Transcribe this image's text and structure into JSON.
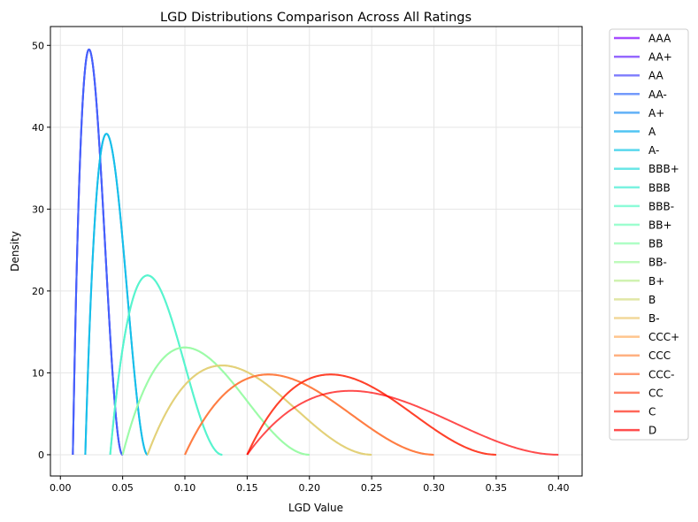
{
  "chart_data": {
    "type": "line",
    "title": "LGD Distributions Comparison Across All Ratings",
    "xlabel": "LGD Value",
    "ylabel": "Density",
    "xlim": [
      -0.008,
      0.419
    ],
    "ylim": [
      -2.6,
      52.3
    ],
    "xticks": [
      "0.00",
      "0.05",
      "0.10",
      "0.15",
      "0.20",
      "0.25",
      "0.30",
      "0.35",
      "0.40"
    ],
    "yticks": [
      "0",
      "10",
      "20",
      "30",
      "40",
      "50"
    ],
    "grid": true,
    "legend_placement": "outside-right",
    "series_opacity": 0.7,
    "series": [
      {
        "name": "AAA",
        "color": "#8000ff",
        "lgd_range": [
          0.01,
          0.05
        ],
        "mode": 0.023,
        "peak_density": 49.5
      },
      {
        "name": "AA+",
        "color": "#6726fe",
        "lgd_range": [
          0.01,
          0.05
        ],
        "mode": 0.023,
        "peak_density": 49.5
      },
      {
        "name": "AA",
        "color": "#4f4bfc",
        "lgd_range": [
          0.01,
          0.05
        ],
        "mode": 0.023,
        "peak_density": 49.5
      },
      {
        "name": "AA-",
        "color": "#376ff9",
        "lgd_range": [
          0.01,
          0.05
        ],
        "mode": 0.023,
        "peak_density": 49.5
      },
      {
        "name": "A+",
        "color": "#1e8ff4",
        "lgd_range": [
          0.02,
          0.07
        ],
        "mode": 0.037,
        "peak_density": 39.2
      },
      {
        "name": "A",
        "color": "#06adee",
        "lgd_range": [
          0.02,
          0.07
        ],
        "mode": 0.037,
        "peak_density": 39.2
      },
      {
        "name": "A-",
        "color": "#12c7e6",
        "lgd_range": [
          0.02,
          0.07
        ],
        "mode": 0.037,
        "peak_density": 39.2
      },
      {
        "name": "BBB+",
        "color": "#2bdddd",
        "lgd_range": [
          0.04,
          0.13
        ],
        "mode": 0.07,
        "peak_density": 21.9
      },
      {
        "name": "BBB",
        "color": "#43edd3",
        "lgd_range": [
          0.04,
          0.13
        ],
        "mode": 0.07,
        "peak_density": 21.9
      },
      {
        "name": "BBB-",
        "color": "#5bf9c7",
        "lgd_range": [
          0.04,
          0.13
        ],
        "mode": 0.07,
        "peak_density": 21.9
      },
      {
        "name": "BB+",
        "color": "#73febb",
        "lgd_range": [
          0.05,
          0.2
        ],
        "mode": 0.1,
        "peak_density": 13.1
      },
      {
        "name": "BB",
        "color": "#8cfead",
        "lgd_range": [
          0.05,
          0.2
        ],
        "mode": 0.1,
        "peak_density": 13.1
      },
      {
        "name": "BB-",
        "color": "#a4f99f",
        "lgd_range": [
          0.05,
          0.2
        ],
        "mode": 0.1,
        "peak_density": 13.1
      },
      {
        "name": "B+",
        "color": "#bced90",
        "lgd_range": [
          0.07,
          0.25
        ],
        "mode": 0.13,
        "peak_density": 10.9
      },
      {
        "name": "B",
        "color": "#d4dd80",
        "lgd_range": [
          0.07,
          0.25
        ],
        "mode": 0.13,
        "peak_density": 10.9
      },
      {
        "name": "B-",
        "color": "#edc76f",
        "lgd_range": [
          0.07,
          0.25
        ],
        "mode": 0.13,
        "peak_density": 10.9
      },
      {
        "name": "CCC+",
        "color": "#ffad5d",
        "lgd_range": [
          0.1,
          0.3
        ],
        "mode": 0.167,
        "peak_density": 9.8
      },
      {
        "name": "CCC",
        "color": "#ff8f4b",
        "lgd_range": [
          0.1,
          0.3
        ],
        "mode": 0.167,
        "peak_density": 9.8
      },
      {
        "name": "CCC-",
        "color": "#ff6f39",
        "lgd_range": [
          0.1,
          0.3
        ],
        "mode": 0.167,
        "peak_density": 9.8
      },
      {
        "name": "CC",
        "color": "#ff4b26",
        "lgd_range": [
          0.15,
          0.35
        ],
        "mode": 0.217,
        "peak_density": 9.8
      },
      {
        "name": "C",
        "color": "#ff2613",
        "lgd_range": [
          0.15,
          0.35
        ],
        "mode": 0.217,
        "peak_density": 9.8
      },
      {
        "name": "D",
        "color": "#ff0000",
        "lgd_range": [
          0.15,
          0.4
        ],
        "mode": 0.233,
        "peak_density": 7.8
      }
    ]
  }
}
